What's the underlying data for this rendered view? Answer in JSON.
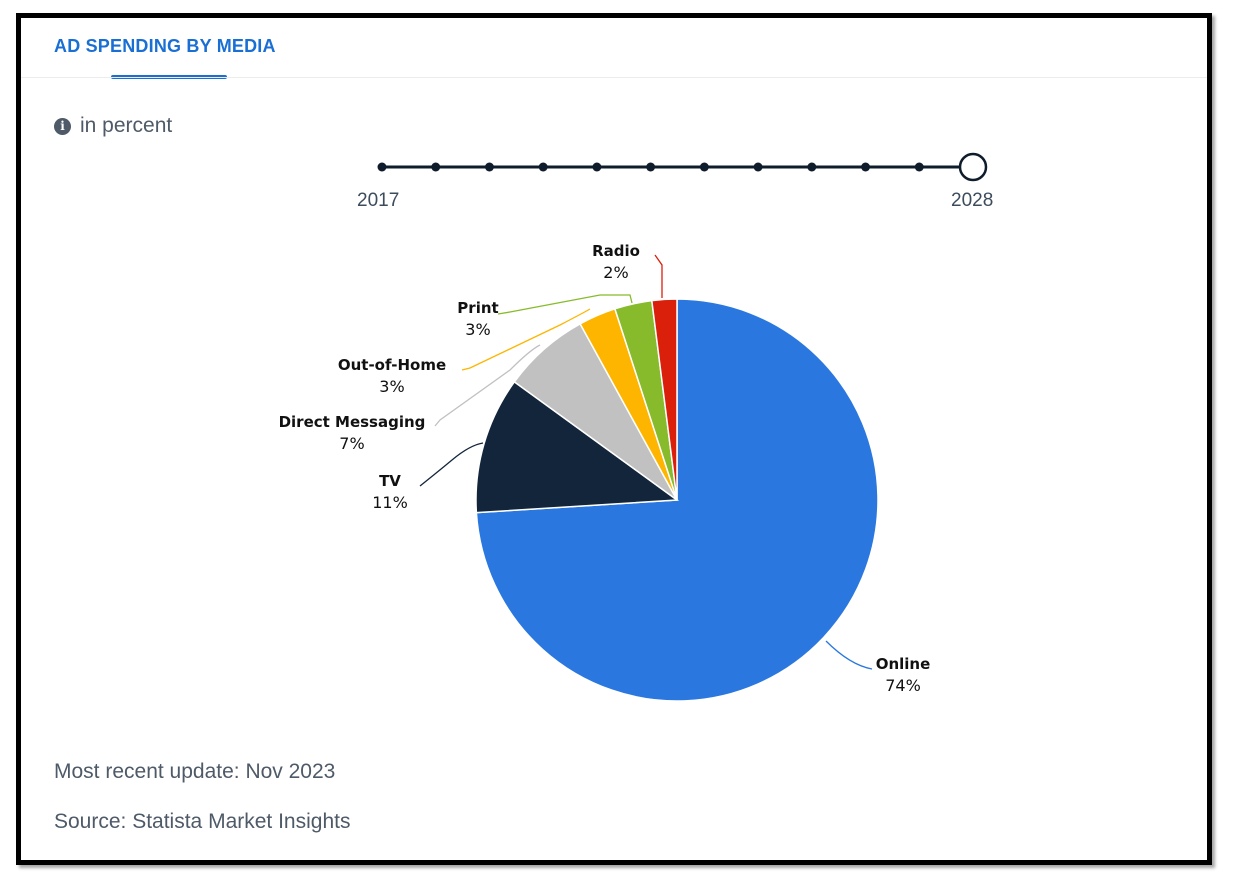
{
  "header": {
    "title": "AD SPENDING BY MEDIA"
  },
  "unit": {
    "label": "in percent",
    "icon": "info-icon"
  },
  "timeline": {
    "start_year": "2017",
    "end_year": "2028",
    "steps": 12,
    "selected_index": 11
  },
  "footer": {
    "update": "Most recent update: Nov 2023",
    "source": "Source: Statista Market Insights"
  },
  "colors": {
    "accent": "#1a6fd4"
  },
  "chart_data": {
    "type": "pie",
    "title": "",
    "slices": [
      {
        "label": "Online",
        "value": 74,
        "display": "74%",
        "color": "#2a78df"
      },
      {
        "label": "TV",
        "value": 11,
        "display": "11%",
        "color": "#13253b"
      },
      {
        "label": "Direct Messaging",
        "value": 7,
        "display": "7%",
        "color": "#c1c1c1"
      },
      {
        "label": "Out-of-Home",
        "value": 3,
        "display": "3%",
        "color": "#fdb500"
      },
      {
        "label": "Print",
        "value": 3,
        "display": "3%",
        "color": "#87bb2b"
      },
      {
        "label": "Radio",
        "value": 2,
        "display": "2%",
        "color": "#da1f0b"
      }
    ]
  }
}
